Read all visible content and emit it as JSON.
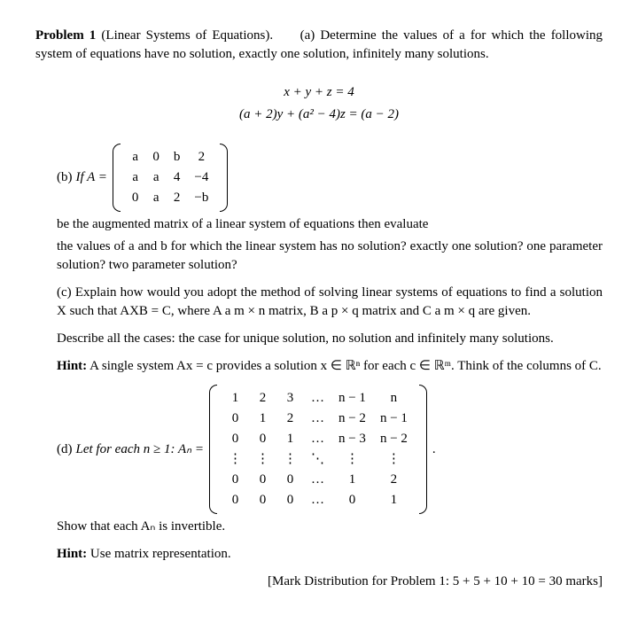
{
  "header": {
    "problem_label": "Problem 1",
    "topic": "(Linear Systems of Equations).",
    "part_a_label": "(a)",
    "part_a_text": "Determine the values of a for which the following system of equations have no solution, exactly one solution, infinitely many solutions."
  },
  "equations": {
    "line1": "x + y + z = 4",
    "line2": "(a + 2)y + (a² − 4)z = (a − 2)"
  },
  "partB": {
    "lead_label": "(b)",
    "lead_text1": "If A =",
    "lead_text2": "be the augmented matrix of a linear system of equations then evaluate",
    "body": "the values of a and b for which the linear system has no solution? exactly one solution? one parameter solution? two parameter solution?",
    "matrix": {
      "rows": [
        [
          "a",
          "0",
          "b",
          "2"
        ],
        [
          "a",
          "a",
          "4",
          "−4"
        ],
        [
          "0",
          "a",
          "2",
          "−b"
        ]
      ],
      "ncols": 4
    }
  },
  "partC": {
    "label": "(c)",
    "text1": "Explain how would you adopt the method of solving linear systems of equations to find a solution X such that AXB = C, where A a m × n matrix, B a p × q matrix and C a m × q are given.",
    "text2": "Describe all the cases: the case for unique solution, no solution and infinitely many solutions.",
    "hint_label": "Hint:",
    "hint_text": "A single system Ax = c provides a solution x ∈ ℝⁿ for each c ∈ ℝᵐ. Think of the columns of C."
  },
  "partD": {
    "label": "(d)",
    "lead": "Let for each n ≥ 1: Aₙ =",
    "matrix": {
      "rows": [
        [
          "1",
          "2",
          "3",
          "…",
          "n − 1",
          "n"
        ],
        [
          "0",
          "1",
          "2",
          "…",
          "n − 2",
          "n − 1"
        ],
        [
          "0",
          "0",
          "1",
          "…",
          "n − 3",
          "n − 2"
        ],
        [
          "⋮",
          "⋮",
          "⋮",
          "⋱",
          "⋮",
          "⋮"
        ],
        [
          "0",
          "0",
          "0",
          "…",
          "1",
          "2"
        ],
        [
          "0",
          "0",
          "0",
          "…",
          "0",
          "1"
        ]
      ],
      "ncols": 6
    },
    "trail": ".",
    "show": "Show that each Aₙ is invertible.",
    "hint_label": "Hint:",
    "hint_text": "Use matrix representation."
  },
  "marks": "[Mark Distribution for Problem 1: 5 + 5 + 10 + 10 = 30 marks]",
  "style": {
    "font_family": "Times New Roman",
    "body_fontsize_pt": 11,
    "text_color": "#000000",
    "background_color": "#ffffff"
  }
}
